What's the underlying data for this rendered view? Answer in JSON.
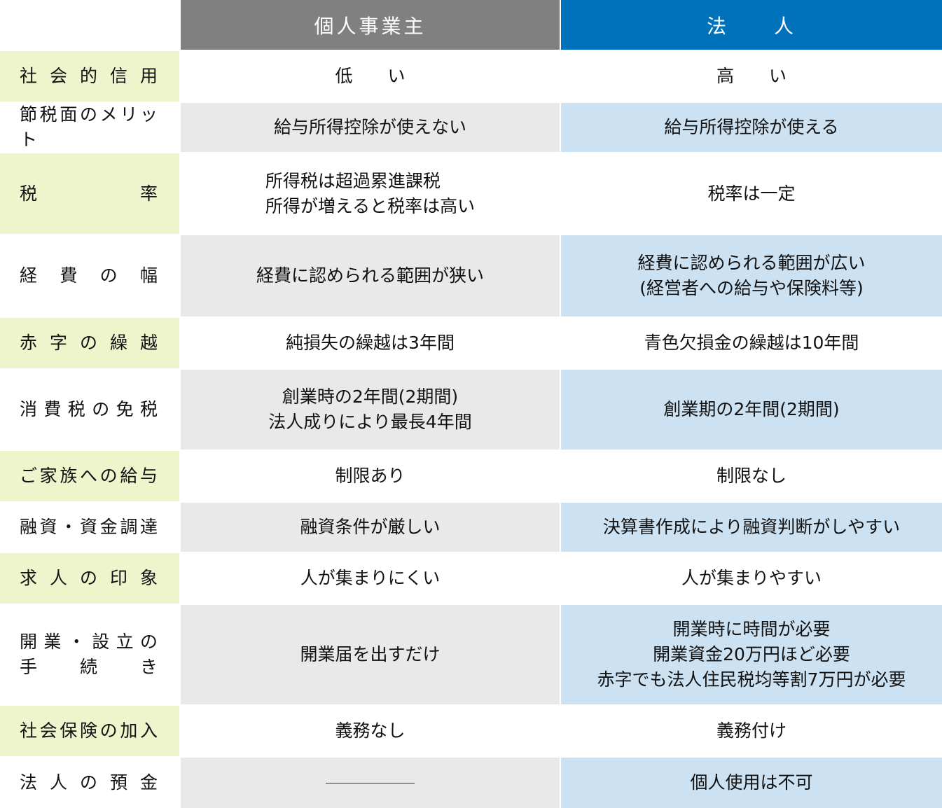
{
  "header": {
    "col1": "個人事業主",
    "col2": "法　　人",
    "col1_color": "#808080",
    "col2_color": "#0072bc"
  },
  "colors": {
    "label_green": "#eef4cc",
    "col1_gray": "#e9e9e9",
    "col2_blue": "#cce1f1"
  },
  "rows": [
    {
      "label": "社会的信用",
      "col1": "低　　い",
      "col2": "高　　い"
    },
    {
      "label": "節税面のメリット",
      "col1": "給与所得控除が使えない",
      "col2": "給与所得控除が使える"
    },
    {
      "label": "税率",
      "col1": "所得税は超過累進課税\n所得が増えると税率は高い",
      "col2": "税率は一定"
    },
    {
      "label": "経費の幅",
      "col1": "経費に認められる範囲が狭い",
      "col2": "経費に認められる範囲が広い\n(経営者への給与や保険料等)"
    },
    {
      "label": "赤字の繰越",
      "col1": "純損失の繰越は3年間",
      "col2": "青色欠損金の繰越は10年間"
    },
    {
      "label": "消費税の免税",
      "col1": "創業時の2年間(2期間)\n法人成りにより最長4年間",
      "col2": "創業期の2年間(2期間)"
    },
    {
      "label": "ご家族への給与",
      "col1": "制限あり",
      "col2": "制限なし"
    },
    {
      "label": "融資・資金調達",
      "col1": "融資条件が厳しい",
      "col2": "決算書作成により融資判断がしやすい"
    },
    {
      "label": "求人の印象",
      "col1": "人が集まりにくい",
      "col2": "人が集まりやすい"
    },
    {
      "label": "開業・設立の\n手続き",
      "col1": "開業届を出すだけ",
      "col2": "開業時に時間が必要\n開業資金20万円ほど必要\n赤字でも法人住民税均等割7万円が必要"
    },
    {
      "label": "社会保険の加入",
      "col1": "義務なし",
      "col2": "義務付け"
    },
    {
      "label": "法人の預金",
      "col1": "",
      "col2": "個人使用は不可"
    }
  ]
}
